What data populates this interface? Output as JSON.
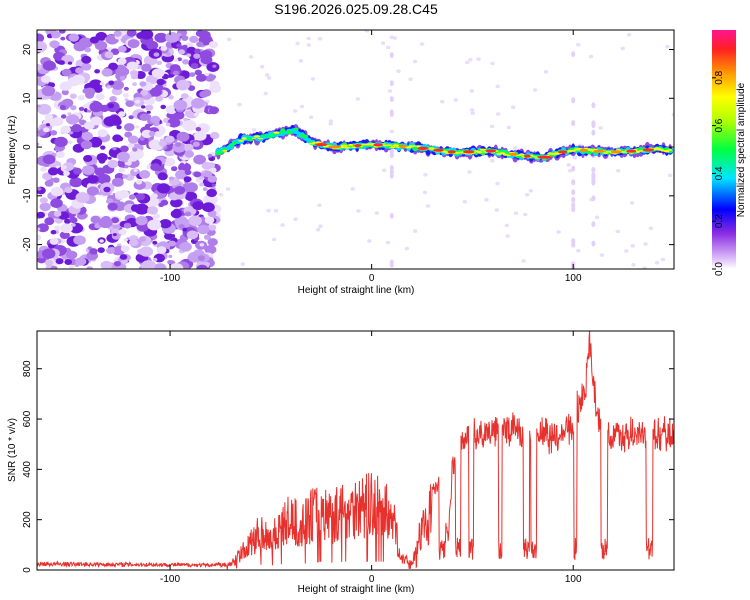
{
  "title": "S196.2026.025.09.28.C45",
  "chart_data": [
    {
      "type": "heatmap",
      "xlabel": "Height of straight line (km)",
      "ylabel": "Frequency (Hz)",
      "xlim": [
        -166,
        150
      ],
      "ylim": [
        -25,
        24
      ],
      "xticks": [
        -100,
        0,
        100
      ],
      "yticks": [
        -20,
        -10,
        0,
        10,
        20
      ],
      "ridge": {
        "x": [
          -75,
          -65,
          -55,
          -45,
          -38,
          -30,
          -20,
          -10,
          0,
          10,
          20,
          30,
          40,
          50,
          60,
          70,
          80,
          85,
          90,
          100,
          110,
          120,
          130,
          140,
          150
        ],
        "freq": [
          -1.0,
          1.5,
          2.0,
          3.0,
          3.5,
          1.0,
          0.0,
          0.2,
          0.5,
          0.3,
          0.0,
          -0.5,
          -1.0,
          -1.0,
          -0.8,
          -1.5,
          -2.0,
          -2.2,
          -1.5,
          -0.5,
          -0.8,
          -1.0,
          -0.8,
          -0.5,
          -0.5
        ]
      },
      "colorbar": {
        "label": "Normalized spectral amplitude",
        "range": [
          0,
          1
        ],
        "ticks": [
          0.0,
          0.2,
          0.4,
          0.6,
          0.8
        ]
      }
    },
    {
      "type": "line",
      "xlabel": "Height of straight line (km)",
      "ylabel": "SNR (10 * v/v)",
      "xlim": [
        -166,
        150
      ],
      "ylim": [
        0,
        950
      ],
      "xticks": [
        -100,
        0,
        100
      ],
      "yticks": [
        0,
        200,
        400,
        600,
        800
      ],
      "color": "#e8312d",
      "envelope": {
        "x": [
          -166,
          -100,
          -80,
          -70,
          -62,
          -55,
          -50,
          -45,
          -40,
          -35,
          -30,
          -25,
          -20,
          -15,
          -10,
          -5,
          0,
          5,
          10,
          15,
          20,
          25,
          30,
          35,
          38,
          40,
          45,
          50,
          55,
          60,
          65,
          70,
          75,
          80,
          85,
          90,
          95,
          100,
          103,
          106,
          108,
          110,
          112,
          115,
          120,
          125,
          130,
          135,
          140,
          145,
          150
        ],
        "snr": [
          25,
          22,
          20,
          30,
          120,
          210,
          180,
          230,
          280,
          230,
          300,
          330,
          290,
          320,
          350,
          340,
          360,
          330,
          300,
          60,
          40,
          220,
          330,
          330,
          100,
          420,
          520,
          560,
          560,
          570,
          560,
          590,
          560,
          580,
          560,
          540,
          580,
          600,
          690,
          720,
          930,
          760,
          620,
          560,
          540,
          550,
          560,
          560,
          550,
          560,
          540
        ]
      }
    }
  ]
}
